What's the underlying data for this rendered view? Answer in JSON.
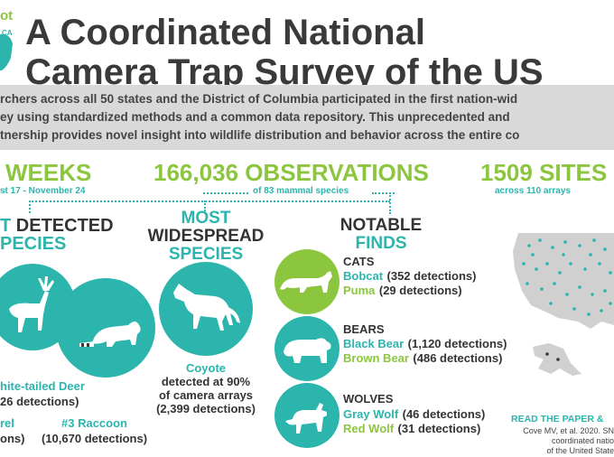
{
  "logo": {
    "text": "ot\nCA"
  },
  "title": {
    "line1": "A Coordinated National",
    "line2": "Camera Trap Survey of the US"
  },
  "intro": {
    "line1": "rchers across all 50 states and the District of Columbia participated in the first nation-wid",
    "line2": "ey using standardized methods and a common data repository. This unprecedented and",
    "line3": "tnership provides novel insight into wildlife distribution and behavior across the entire co"
  },
  "stats": {
    "weeks": {
      "big": "WEEKS",
      "sub": "st 17 - November 24"
    },
    "observations": {
      "big": "166,036 OBSERVATIONS",
      "sub": "of 83 mammal species"
    },
    "sites": {
      "big": "1509 SITES",
      "sub": "across 110 arrays"
    }
  },
  "most_detected": {
    "heading_line1": "DETECTED",
    "heading_line2": "PECIES",
    "first": {
      "name": "hite-tailed Deer",
      "detections": "26 detections)"
    },
    "second": {
      "name": "rel",
      "detections": "ons)"
    },
    "third": {
      "name": "#3 Raccoon",
      "detections": "(10,670 detections)"
    }
  },
  "widespread": {
    "heading_line1": "MOST",
    "heading_line2": "WIDESPREAD",
    "heading_line3": "SPECIES",
    "species": "Coyote",
    "desc_line1": "detected at 90%",
    "desc_line2": "of camera arrays",
    "desc_line3": "(2,399 detections)"
  },
  "notable": {
    "heading_line1": "NOTABLE",
    "heading_line2": "FINDS",
    "groups": [
      {
        "label": "CATS",
        "a_name": "Bobcat",
        "a_count": "(352 detections)",
        "b_name": "Puma",
        "b_count": "(29 detections)"
      },
      {
        "label": "BEARS",
        "a_name": "Black Bear",
        "a_count": "(1,120 detections)",
        "b_name": "Brown Bear",
        "b_count": "(486 detections)"
      },
      {
        "label": "WOLVES",
        "a_name": "Gray Wolf",
        "a_count": "(46 detections)",
        "b_name": "Red Wolf",
        "b_count": "(31 detections)"
      }
    ]
  },
  "paper": {
    "link": "READ THE PAPER &",
    "cite_line1": "Cove MV, et al. 2020. SN",
    "cite_line2": "coordinated natio",
    "cite_line3": "of the United State"
  },
  "colors": {
    "teal": "#2bb5ad",
    "green": "#8cc63f",
    "dark": "#3a3a3a",
    "gray_band": "#d9d9d9"
  }
}
